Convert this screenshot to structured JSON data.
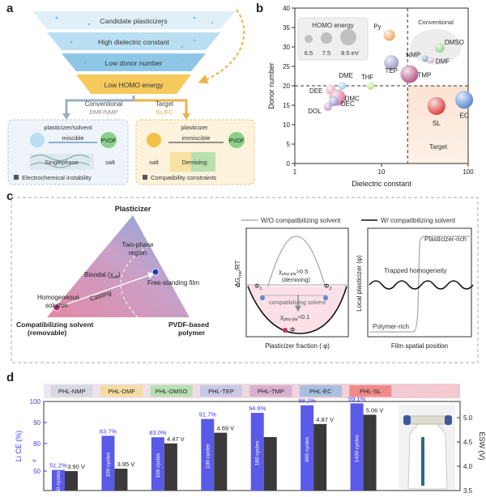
{
  "panel_a": {
    "letter": "a",
    "funnel": [
      "Candidate plasticizers",
      "High dielectric constant",
      "Low donor number",
      "Low HOMO energy"
    ],
    "conventional_label": "Conventional",
    "conventional_sub": "DMF/NMP",
    "target_label": "Target",
    "target_sub": "SL/EC",
    "left_box": {
      "component": "plasticizer/solvent",
      "relation": "miscible",
      "polymer": "PVDF",
      "phase": "Singlephase",
      "salt": "salt",
      "caption": "Electrochemical instability"
    },
    "right_box": {
      "component": "plasticizer",
      "relation": "immiscible",
      "polymer": "PVDF",
      "phase": "Demixing",
      "salt": "salt",
      "caption": "Compatibility constraints"
    }
  },
  "panel_b": {
    "letter": "b",
    "chart_data": {
      "type": "scatter",
      "xlabel": "Dielectric constant",
      "ylabel": "Donor number",
      "xscale": "log",
      "xlim": [
        1,
        100
      ],
      "ylim": [
        0,
        40
      ],
      "xticks": [
        "1",
        "10",
        "100"
      ],
      "yticks": [
        "0",
        "5",
        "10",
        "15",
        "20",
        "25",
        "30",
        "35",
        "40"
      ],
      "thresholds": {
        "x": 20,
        "y": 20
      },
      "legend_title": "HOMO energy",
      "legend_sizes": [
        "6.5",
        "7.5",
        "8.5 eV"
      ],
      "conventional_label": "Conventional",
      "target_label": "Target",
      "points": [
        {
          "label": "Py",
          "x": 12.3,
          "y": 33,
          "color": "#f0a868"
        },
        {
          "label": "TEP",
          "x": 13,
          "y": 26,
          "color": "#9a9ac8"
        },
        {
          "label": "TMP",
          "x": 21,
          "y": 23,
          "color": "#b85a8a"
        },
        {
          "label": "THF",
          "x": 7.5,
          "y": 20,
          "color": "#c8dc8c"
        },
        {
          "label": "DME",
          "x": 3.5,
          "y": 20,
          "color": "#9ad0e0"
        },
        {
          "label": "DEE",
          "x": 2.6,
          "y": 19,
          "color": "#e6a8b8"
        },
        {
          "label": "DMC",
          "x": 3.1,
          "y": 17,
          "color": "#d47a9a"
        },
        {
          "label": "DEC",
          "x": 2.8,
          "y": 16,
          "color": "#9a9ad8"
        },
        {
          "label": "DOL",
          "x": 2.4,
          "y": 14.6,
          "color": "#c89ac8"
        },
        {
          "label": "NMP",
          "x": 32,
          "y": 27,
          "color": "#7a9ad0"
        },
        {
          "label": "DMSO",
          "x": 47,
          "y": 29.8,
          "color": "#9ad08a"
        },
        {
          "label": "DMF",
          "x": 37,
          "y": 26.6,
          "color": "#d8a8d8"
        },
        {
          "label": "SL",
          "x": 43,
          "y": 14.8,
          "color": "#e04040"
        },
        {
          "label": "EC",
          "x": 90,
          "y": 16.4,
          "color": "#5a8ad0"
        }
      ]
    }
  },
  "panel_c": {
    "letter": "c",
    "ternary": {
      "top": "Plasticizer",
      "left_line1": "Compatibilizing solvent",
      "left_line2": "(removable)",
      "right_line1": "PVDF-based",
      "right_line2": "polymer",
      "two_phase_line1": "Two-phase",
      "two_phase_line2": "region",
      "binodal": "Binodal (χ",
      "binodal_sub": "eff",
      "binodal_end": ")",
      "film": "Free-standing film",
      "homog_line1": "Homogeneous",
      "homog_line2": "solution",
      "casting": "Casting"
    },
    "energy": {
      "legend": "W/O compatibilizing solvent",
      "ylabel": "ΔG",
      "ylabel_sub": "mix",
      "ylabel_end": "/RT",
      "zero": "0",
      "chi_high": "χ",
      "chi_high_sub": "ploy-pla",
      "chi_high_end": ">0.5",
      "demixing": "(demixing)",
      "compat": "compatibilizing solvent",
      "chi_low": "χ",
      "chi_low_sub": "ploy-pla",
      "chi_low_end": "<0.1",
      "phi": "Φ",
      "phi1": "1",
      "phi2": "2",
      "xlabel": "Plasticizer fraction ( φ)"
    },
    "profile": {
      "legend": "W/ compatibilizing solvent",
      "ylabel": "Local plasticizer (φ)",
      "rich": "Plasticizer-rich",
      "trapped": "Trapped homogeneity",
      "poly": "Polymer-rich",
      "xlabel": "Film spatial position"
    }
  },
  "panel_d": {
    "letter": "d",
    "chart_data": {
      "type": "bar",
      "categories": [
        "PHL-NMP",
        "PHL-DMF",
        "PHL-DMSO",
        "PHL-TEP",
        "PHL-TMP",
        "PHL-EC",
        "PHL-SL"
      ],
      "category_colors": [
        "#d8d8e2",
        "#f6dca0",
        "#b8e0b0",
        "#c8c8e8",
        "#d8b0d0",
        "#a8c0e0",
        "#f08a8a"
      ],
      "ylabel_left": "Li CE (%)",
      "ylabel_right": "ESW (V)",
      "left_ticks": [
        "100",
        "90",
        "80",
        "50"
      ],
      "right_ticks": [
        "5.0",
        "4.5",
        "4.0",
        "3.5"
      ],
      "series": [
        {
          "name": "Li CE (%)",
          "values": [
            51.2,
            83.7,
            83.0,
            91.7,
            94.6,
            98.2,
            99.1
          ],
          "labels": [
            "51.2%",
            "83.7%",
            "83.0%",
            "91.7%",
            "94.6%",
            "98.2%",
            "99.1%"
          ]
        },
        {
          "name": "ESW (V)",
          "values": [
            3.9,
            3.95,
            4.47,
            4.69,
            4.6,
            4.87,
            5.06
          ],
          "labels": [
            "3.90 V",
            "3.95 V",
            "4.47 V",
            "4.69 V",
            "",
            "4.87 V",
            "5.06 V"
          ]
        }
      ],
      "cycles": [
        "50 cycles",
        "100 cycles",
        "100 cycles",
        "100 cycles",
        "180 cycles",
        "600 cycles",
        "1400 cycles"
      ]
    }
  }
}
